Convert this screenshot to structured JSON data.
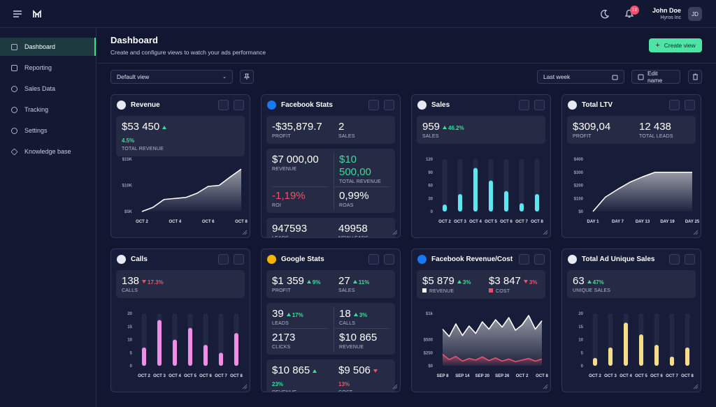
{
  "header": {
    "user_name": "John Doe",
    "company": "Hyros Inc",
    "initials": "JD",
    "notifications": 12
  },
  "sidebar": [
    "Dashboard",
    "Reporting",
    "Sales Data",
    "Tracking",
    "Settings",
    "Knowledge base"
  ],
  "page": {
    "title": "Dashboard",
    "subtitle": "Create and configure views to watch your ads performance",
    "create_button": "Create view",
    "view_select": "Default view",
    "date_select": "Last week",
    "edit_button": "Edit name"
  },
  "cards": [
    {
      "title": "Revenue",
      "icon_color": "#e8eaf2",
      "groups": [
        [
          {
            "value": "$53 450",
            "change": "4.5%",
            "trend": "up",
            "label": "TOTAL REVENUE"
          }
        ]
      ],
      "chart_data": {
        "type": "area",
        "color": "#ffffff",
        "categories": [
          "OCT 2",
          null,
          null,
          "OCT 4",
          null,
          null,
          "OCT 6",
          null,
          null,
          "OCT 8"
        ],
        "values": [
          5000,
          5800,
          7300,
          7500,
          7700,
          8500,
          9800,
          10000,
          11600,
          13100
        ],
        "ylim": [
          5000,
          15000
        ],
        "yticks": [
          {
            "value": 5000,
            "label": "$5K"
          },
          {
            "value": 10000,
            "label": "$10K"
          },
          {
            "value": 15000,
            "label": "$15K"
          }
        ]
      }
    },
    {
      "title": "Facebook Stats",
      "icon_color": "#1877f2",
      "groups": [
        [
          {
            "value": "-$35,879.7",
            "label": "PROFIT"
          },
          {
            "value": "2",
            "label": "SALES"
          }
        ],
        [
          {
            "value": "$7 000,00",
            "label": "REVENUE"
          },
          {
            "value": "$10 500,00",
            "label": "TOTAL REVENUE",
            "color": "#3ddc97"
          },
          {
            "value": "-1,19%",
            "label": "ROI",
            "color": "#f0506e"
          },
          {
            "value": "0,99%",
            "label": "ROAS"
          }
        ],
        [
          {
            "value": "947593",
            "label": "LEADS"
          },
          {
            "value": "49958",
            "label": "NEW LEADS"
          }
        ]
      ]
    },
    {
      "title": "Sales",
      "icon_color": "#e8eaf2",
      "groups": [
        [
          {
            "value": "959",
            "change": "46.2%",
            "trend": "up",
            "label": "SALES"
          }
        ]
      ],
      "chart_data": {
        "type": "bar",
        "color": "#5ee6f0",
        "categories": [
          "OCT 2",
          "OCT 3",
          "OCT 4",
          "OCT 5",
          "OCT 6",
          "OCT 7",
          "OCT 8"
        ],
        "values": [
          16,
          40,
          100,
          71,
          47,
          19,
          40
        ],
        "ylim": [
          0,
          120
        ],
        "yticks": [
          0,
          30,
          60,
          90,
          120
        ]
      }
    },
    {
      "title": "Total LTV",
      "icon_color": "#e8eaf2",
      "groups": [
        [
          {
            "value": "$309,04",
            "label": "PROFIT"
          },
          {
            "value": "12 438",
            "label": "TOTAL LEADS"
          }
        ]
      ],
      "chart_data": {
        "type": "area",
        "color": "#ffffff",
        "categories": [
          "DAY 1",
          null,
          "DAY 7",
          null,
          "DAY 13",
          null,
          "DAY 19",
          null,
          "DAY 25"
        ],
        "values": [
          0,
          110,
          170,
          225,
          265,
          300,
          300,
          300,
          300
        ],
        "ylim": [
          0,
          400
        ],
        "yticks": [
          {
            "value": 0,
            "label": "$0"
          },
          {
            "value": 100,
            "label": "$100"
          },
          {
            "value": 200,
            "label": "$200"
          },
          {
            "value": 300,
            "label": "$300"
          },
          {
            "value": 400,
            "label": "$400"
          }
        ]
      }
    },
    {
      "title": "Calls",
      "icon_color": "#e8eaf2",
      "groups": [
        [
          {
            "value": "138",
            "change": "17.3%",
            "trend": "down",
            "label": "CALLS"
          }
        ]
      ],
      "chart_data": {
        "type": "bar",
        "color": "#f08ee6",
        "categories": [
          "OCT 2",
          "OCT 3",
          "OCT 4",
          "OCT 5",
          "OCT 6",
          "OCT 7",
          "OCT 8"
        ],
        "values": [
          7,
          17.5,
          10,
          14.5,
          8,
          5,
          12.5
        ],
        "ylim": [
          0,
          20
        ],
        "yticks": [
          0,
          5,
          10,
          15,
          20
        ]
      }
    },
    {
      "title": "Google Stats",
      "icon_color": "#f4b400",
      "groups": [
        [
          {
            "value": "$1 359",
            "change": "9%",
            "trend": "up",
            "label": "PROFIT"
          },
          {
            "value": "27",
            "change": "11%",
            "trend": "up",
            "label": "SALES"
          }
        ],
        [
          {
            "value": "39",
            "change": "17%",
            "trend": "up",
            "label": "LEADS"
          },
          {
            "value": "18",
            "change": "3%",
            "trend": "up",
            "label": "CALLS"
          },
          {
            "value": "2173",
            "label": "CLICKS"
          },
          {
            "value": "$10 865",
            "label": "REVENUE"
          }
        ],
        [
          {
            "value": "$10 865",
            "change": "23%",
            "trend": "up",
            "label": "REVENUE"
          },
          {
            "value": "$9 506",
            "change": "13%",
            "trend": "down",
            "label": "COST"
          }
        ]
      ]
    },
    {
      "title": "Facebook Revenue/Cost",
      "icon_color": "#1877f2",
      "groups": [
        [
          {
            "value": "$5 879",
            "change": "3%",
            "trend": "up",
            "label": "REVENUE",
            "swatch": "#ffffff"
          },
          {
            "value": "$3 847",
            "change": "3%",
            "trend": "down",
            "label": "COST",
            "swatch": "#f0506e"
          }
        ]
      ],
      "chart_data": {
        "type": "area",
        "categories": [
          "SEP 8",
          null,
          null,
          "SEP 14",
          null,
          null,
          "SEP 20",
          null,
          null,
          "SEP 26",
          null,
          null,
          "OCT 2",
          null,
          null,
          "OCT 8"
        ],
        "series": [
          {
            "color": "#ffffff",
            "values": [
              700,
              560,
              800,
              580,
              760,
              620,
              840,
              700,
              880,
              740,
              920,
              680,
              780,
              960,
              700,
              860
            ]
          },
          {
            "color": "#f0506e",
            "values": [
              220,
              120,
              180,
              90,
              140,
              110,
              170,
              100,
              150,
              90,
              130,
              80,
              110,
              140,
              90,
              130
            ]
          }
        ],
        "ylim": [
          0,
          1000
        ],
        "yticks": [
          {
            "value": 0,
            "label": "$0"
          },
          {
            "value": 250,
            "label": "$250"
          },
          {
            "value": 500,
            "label": "$500"
          },
          {
            "value": 1000,
            "label": "$1k"
          }
        ]
      }
    },
    {
      "title": "Total Ad Unique Sales",
      "icon_color": "#e8eaf2",
      "groups": [
        [
          {
            "value": "63",
            "change": "47%",
            "trend": "up",
            "label": "UNIQUE SALES"
          }
        ]
      ],
      "chart_data": {
        "type": "bar",
        "color": "#f5dd8a",
        "categories": [
          "OCT 2",
          "OCT 3",
          "OCT 4",
          "OCT 5",
          "OCT 6",
          "OCT 7",
          "OCT 8"
        ],
        "values": [
          3,
          7,
          16.5,
          12,
          8,
          3.5,
          7
        ],
        "ylim": [
          0,
          20
        ],
        "yticks": [
          0,
          5,
          10,
          15,
          20
        ]
      }
    }
  ]
}
